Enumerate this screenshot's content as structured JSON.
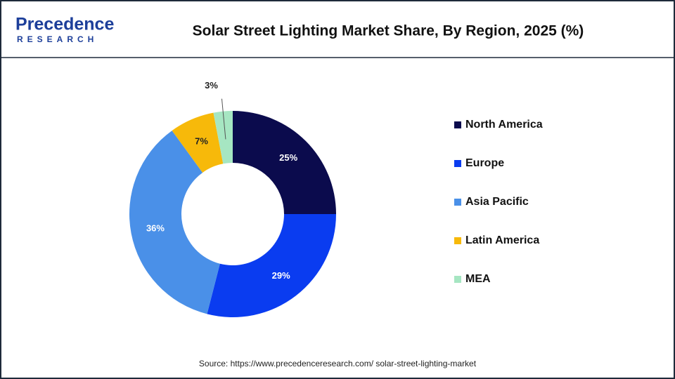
{
  "logo": {
    "name": "Precedence",
    "sub": "RESEARCH"
  },
  "chart_data": {
    "type": "donut",
    "title": "Solar Street Lighting Market Share, By Region, 2025 (%)",
    "categories": [
      "North America",
      "Europe",
      "Asia Pacific",
      "Latin America",
      "MEA"
    ],
    "values": [
      25,
      29,
      36,
      7,
      3
    ],
    "value_labels": [
      "25%",
      "29%",
      "36%",
      "7%",
      "3%"
    ],
    "colors": [
      "#0b0b4d",
      "#0a3cf0",
      "#4a90e8",
      "#f7b90a",
      "#a6e6c2"
    ],
    "legend": "right"
  },
  "source": "Source: https://www.precedenceresearch.com/ solar-street-lighting-market"
}
